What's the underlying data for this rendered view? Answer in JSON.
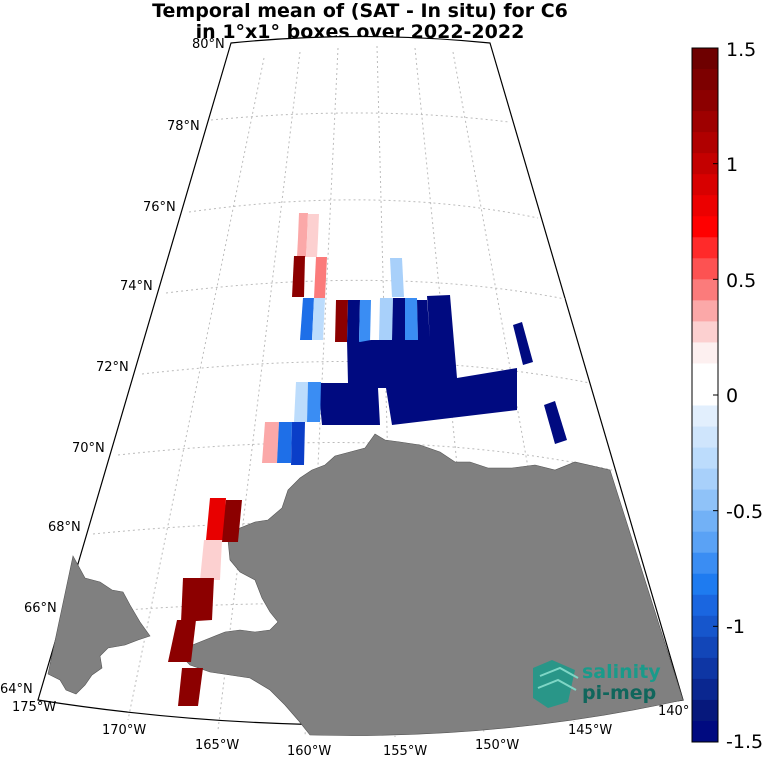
{
  "title": {
    "line1": "Temporal mean of (SAT - In situ) for C6",
    "line2": "in 1°x1° boxes over 2022-2022"
  },
  "map": {
    "lat_labels": [
      "80°N",
      "78°N",
      "76°N",
      "74°N",
      "72°N",
      "70°N",
      "68°N",
      "66°N",
      "64°N"
    ],
    "lon_labels": [
      "175°W",
      "170°W",
      "165°W",
      "160°W",
      "155°W",
      "150°W",
      "145°W",
      "140°"
    ],
    "land_color": "#808080",
    "grid_style": "dotted"
  },
  "colorbar": {
    "min": -1.5,
    "max": 1.5,
    "tick_labels": [
      "1.5",
      "1",
      "0.5",
      "0",
      "-0.5",
      "-1",
      "-1.5"
    ],
    "colormap": "blue-white-red"
  },
  "logo": {
    "line1": "salinity",
    "line2": "pi-mep",
    "color": "#1a9a8a"
  }
}
